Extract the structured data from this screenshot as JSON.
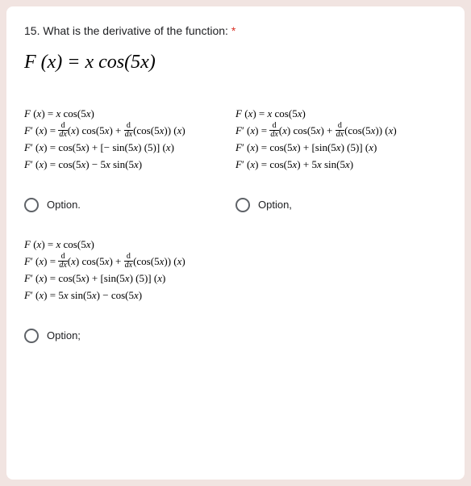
{
  "question": {
    "number": "15.",
    "text": "What is the derivative of the function:",
    "required_marker": "*",
    "formula_html": "F (x) = x cos(5x)"
  },
  "options": [
    {
      "lines": [
        "<span class='it'>F</span> (<span class='it'>x</span>) = <span class='it'>x</span> cos(5<span class='it'>x</span>)",
        "<span class='it'>F</span><span class='prime'>′</span> (<span class='it'>x</span>) = <span class='frac'><span class='num'>d</span><span class='den'>dx</span></span>(<span class='it'>x</span>) cos(5<span class='it'>x</span>) + <span class='frac'><span class='num'>d</span><span class='den'>dx</span></span>(cos(5<span class='it'>x</span>)) (<span class='it'>x</span>)",
        "<span class='it'>F</span><span class='prime'>′</span> (<span class='it'>x</span>) = cos(5<span class='it'>x</span>) + [− sin(5<span class='it'>x</span>) (5)] (<span class='it'>x</span>)",
        "<span class='it'>F</span><span class='prime'>′</span> (<span class='it'>x</span>) = cos(5<span class='it'>x</span>) − 5<span class='it'>x</span> sin(5<span class='it'>x</span>)"
      ],
      "label": "Option."
    },
    {
      "lines": [
        "<span class='it'>F</span> (<span class='it'>x</span>) = <span class='it'>x</span> cos(5<span class='it'>x</span>)",
        "<span class='it'>F</span><span class='prime'>′</span> (<span class='it'>x</span>) = <span class='frac'><span class='num'>d</span><span class='den'>dx</span></span>(<span class='it'>x</span>) cos(5<span class='it'>x</span>) + <span class='frac'><span class='num'>d</span><span class='den'>dx</span></span>(cos(5<span class='it'>x</span>)) (<span class='it'>x</span>)",
        "<span class='it'>F</span><span class='prime'>′</span> (<span class='it'>x</span>) = cos(5<span class='it'>x</span>) + [sin(5<span class='it'>x</span>) (5)] (<span class='it'>x</span>)",
        "<span class='it'>F</span><span class='prime'>′</span> (<span class='it'>x</span>) = cos(5<span class='it'>x</span>) + 5<span class='it'>x</span> sin(5<span class='it'>x</span>)"
      ],
      "label": "Option,"
    },
    {
      "lines": [
        "<span class='it'>F</span> (<span class='it'>x</span>) = <span class='it'>x</span> cos(5<span class='it'>x</span>)",
        "<span class='it'>F</span><span class='prime'>′</span> (<span class='it'>x</span>) = <span class='frac'><span class='num'>d</span><span class='den'>dx</span></span>(<span class='it'>x</span>) cos(5<span class='it'>x</span>) + <span class='frac'><span class='num'>d</span><span class='den'>dx</span></span>(cos(5<span class='it'>x</span>)) (<span class='it'>x</span>)",
        "<span class='it'>F</span><span class='prime'>′</span> (<span class='it'>x</span>) = cos(5<span class='it'>x</span>) + [sin(5<span class='it'>x</span>) (5)] (<span class='it'>x</span>)",
        "<span class='it'>F</span><span class='prime'>′</span> (<span class='it'>x</span>) = 5<span class='it'>x</span> sin(5<span class='it'>x</span>) − cos(5<span class='it'>x</span>)"
      ],
      "label": "Option;"
    }
  ],
  "colors": {
    "page_bg": "#f1e4e1",
    "card_bg": "#ffffff",
    "text": "#202124",
    "required": "#d93025",
    "radio_border": "#5f6368"
  }
}
